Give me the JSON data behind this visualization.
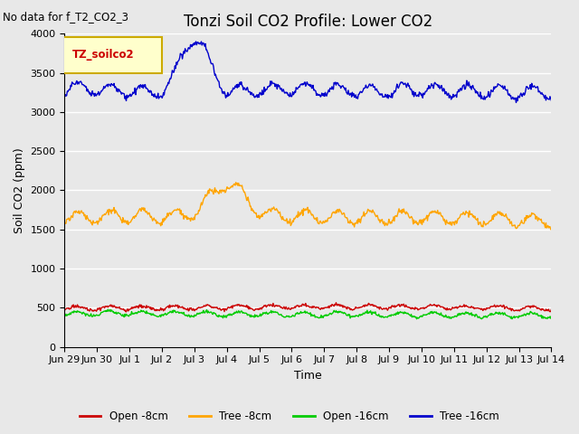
{
  "title": "Tonzi Soil CO2 Profile: Lower CO2",
  "no_data_text": "No data for f_T2_CO2_3",
  "ylabel": "Soil CO2 (ppm)",
  "xlabel": "Time",
  "legend_label": "TZ_soilco2",
  "ylim": [
    0,
    4000
  ],
  "background_color": "#e8e8e8",
  "fig_background": "#e8e8e8",
  "series": {
    "open_8cm": {
      "color": "#cc0000",
      "label": "Open -8cm"
    },
    "tree_8cm": {
      "color": "#ffa500",
      "label": "Tree -8cm"
    },
    "open_16cm": {
      "color": "#00cc00",
      "label": "Open -16cm"
    },
    "tree_16cm": {
      "color": "#0000cc",
      "label": "Tree -16cm"
    }
  },
  "x_tick_labels": [
    "Jun 29",
    "Jun 30",
    "Jul 1",
    "Jul 2",
    "Jul 3",
    "Jul 4",
    "Jul 5",
    "Jul 6",
    "Jul 7",
    "Jul 8",
    "Jul 9",
    "Jul 10",
    "Jul 11",
    "Jul 12",
    "Jul 13",
    "Jul 14"
  ],
  "x_tick_positions": [
    0,
    1,
    2,
    3,
    4,
    5,
    6,
    7,
    8,
    9,
    10,
    11,
    12,
    13,
    14,
    15
  ],
  "y_ticks": [
    0,
    500,
    1000,
    1500,
    2000,
    2500,
    3000,
    3500,
    4000
  ],
  "line_width": 1.0,
  "legend_box_color": "#ffffcc",
  "legend_box_edge": "#ccaa00",
  "title_fontsize": 12,
  "label_fontsize": 9,
  "tick_fontsize": 8
}
